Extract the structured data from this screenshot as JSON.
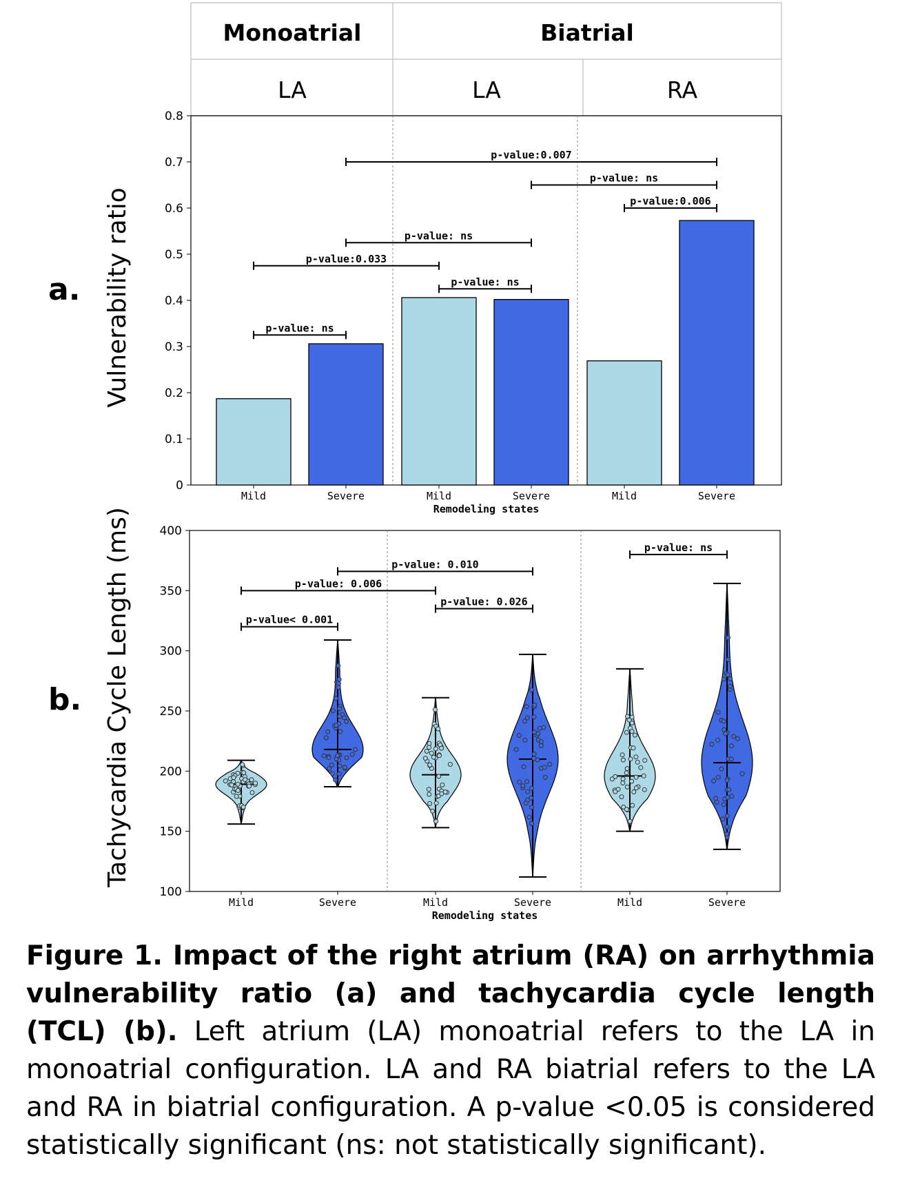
{
  "panel_a": {
    "letter": "a.",
    "ylabel": "Vulnerability ratio",
    "xlabel": "Remodeling states",
    "header": {
      "groups": [
        "Monoatrial",
        "Biatrial"
      ],
      "subgroups": [
        "LA",
        "LA",
        "RA"
      ]
    }
  },
  "panel_b": {
    "letter": "b.",
    "ylabel": "Tachycardia Cycle Length (ms)",
    "xlabel": "Remodeling states"
  },
  "caption": {
    "bold": "Figure 1. Impact of the right atrium (RA) on arrhythmia vulnerability ratio (a) and tachycardia cycle length (TCL) (b).",
    "text": " Left atrium (LA) monoatrial refers to the LA in monoatrial configuration. LA and RA biatrial refers to the LA and RA in biatrial configuration.  A p-value <0.05 is considered statistically significant (ns: not statistically significant)."
  },
  "colors": {
    "mild": "#add8e6",
    "severe": "#4169e1"
  },
  "chart_data": [
    {
      "type": "bar",
      "categories": [
        "Mild",
        "Severe",
        "Mild",
        "Severe",
        "Mild",
        "Severe"
      ],
      "values": [
        0.187,
        0.306,
        0.406,
        0.402,
        0.269,
        0.573
      ],
      "ylim": [
        0,
        0.8
      ],
      "yticks": [
        "0",
        "0.1",
        "0.2",
        "0.3",
        "0.4",
        "0.5",
        "0.6",
        "0.7",
        "0.8"
      ],
      "xlabel": "Remodeling states",
      "ylabel": "Vulnerability ratio",
      "annotations": [
        {
          "from": 0,
          "to": 1,
          "level": 0.325,
          "text": "p-value: ns"
        },
        {
          "from": 0,
          "to": 2,
          "level": 0.475,
          "text": "p-value:0.033"
        },
        {
          "from": 1,
          "to": 3,
          "level": 0.525,
          "text": "p-value: ns"
        },
        {
          "from": 2,
          "to": 3,
          "level": 0.425,
          "text": "p-value: ns"
        },
        {
          "from": 1,
          "to": 5,
          "level": 0.7,
          "text": "p-value:0.007"
        },
        {
          "from": 3,
          "to": 5,
          "level": 0.65,
          "text": "p-value: ns"
        },
        {
          "from": 4,
          "to": 5,
          "level": 0.6,
          "text": "p-value:0.006"
        }
      ]
    },
    {
      "type": "violin",
      "categories": [
        "Mild",
        "Severe",
        "Mild",
        "Severe",
        "Mild",
        "Severe"
      ],
      "ylim": [
        100,
        400
      ],
      "yticks": [
        "100",
        "150",
        "200",
        "250",
        "300",
        "350",
        "400"
      ],
      "xlabel": "Remodeling states",
      "ylabel": "Tachycardia Cycle Length (ms)",
      "series": [
        {
          "min": 156,
          "max": 209,
          "median": 189
        },
        {
          "min": 187,
          "max": 309,
          "median": 218
        },
        {
          "min": 153,
          "max": 261,
          "median": 197
        },
        {
          "min": 112,
          "max": 297,
          "median": 210
        },
        {
          "min": 150,
          "max": 285,
          "median": 196
        },
        {
          "min": 135,
          "max": 356,
          "median": 207
        }
      ],
      "annotations": [
        {
          "from": 0,
          "to": 1,
          "level": 320,
          "text": "p-value< 0.001"
        },
        {
          "from": 0,
          "to": 2,
          "level": 350,
          "text": "p-value: 0.006"
        },
        {
          "from": 1,
          "to": 3,
          "level": 366,
          "text": "p-value: 0.010"
        },
        {
          "from": 2,
          "to": 3,
          "level": 335,
          "text": "p-value: 0.026"
        },
        {
          "from": 4,
          "to": 5,
          "level": 380,
          "text": "p-value: ns"
        }
      ]
    }
  ]
}
